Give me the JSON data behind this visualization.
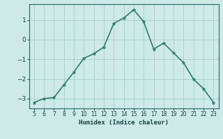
{
  "xlabel": "Humidex (Indice chaleur)",
  "x": [
    5,
    6,
    7,
    8,
    9,
    10,
    11,
    12,
    13,
    14,
    15,
    16,
    17,
    18,
    19,
    20,
    21,
    22,
    23
  ],
  "y": [
    -3.2,
    -3.0,
    -2.95,
    -2.3,
    -1.65,
    -0.95,
    -0.72,
    -0.38,
    0.82,
    1.1,
    1.52,
    0.9,
    -0.48,
    -0.18,
    -0.68,
    -1.18,
    -2.02,
    -2.5,
    -3.2
  ],
  "line_color": "#2e7d6e",
  "marker": "*",
  "marker_color": "#2e7d6e",
  "bg_color": "#cdeae6",
  "grid_color": "#a8d4cf",
  "tick_color": "#2e6060",
  "label_color": "#1a4040",
  "xlim": [
    4.5,
    23.5
  ],
  "ylim": [
    -3.5,
    1.8
  ],
  "yticks": [
    -3,
    -2,
    -1,
    0,
    1
  ],
  "xticks": [
    5,
    6,
    7,
    8,
    9,
    10,
    11,
    12,
    13,
    14,
    15,
    16,
    17,
    18,
    19,
    20,
    21,
    22,
    23
  ]
}
